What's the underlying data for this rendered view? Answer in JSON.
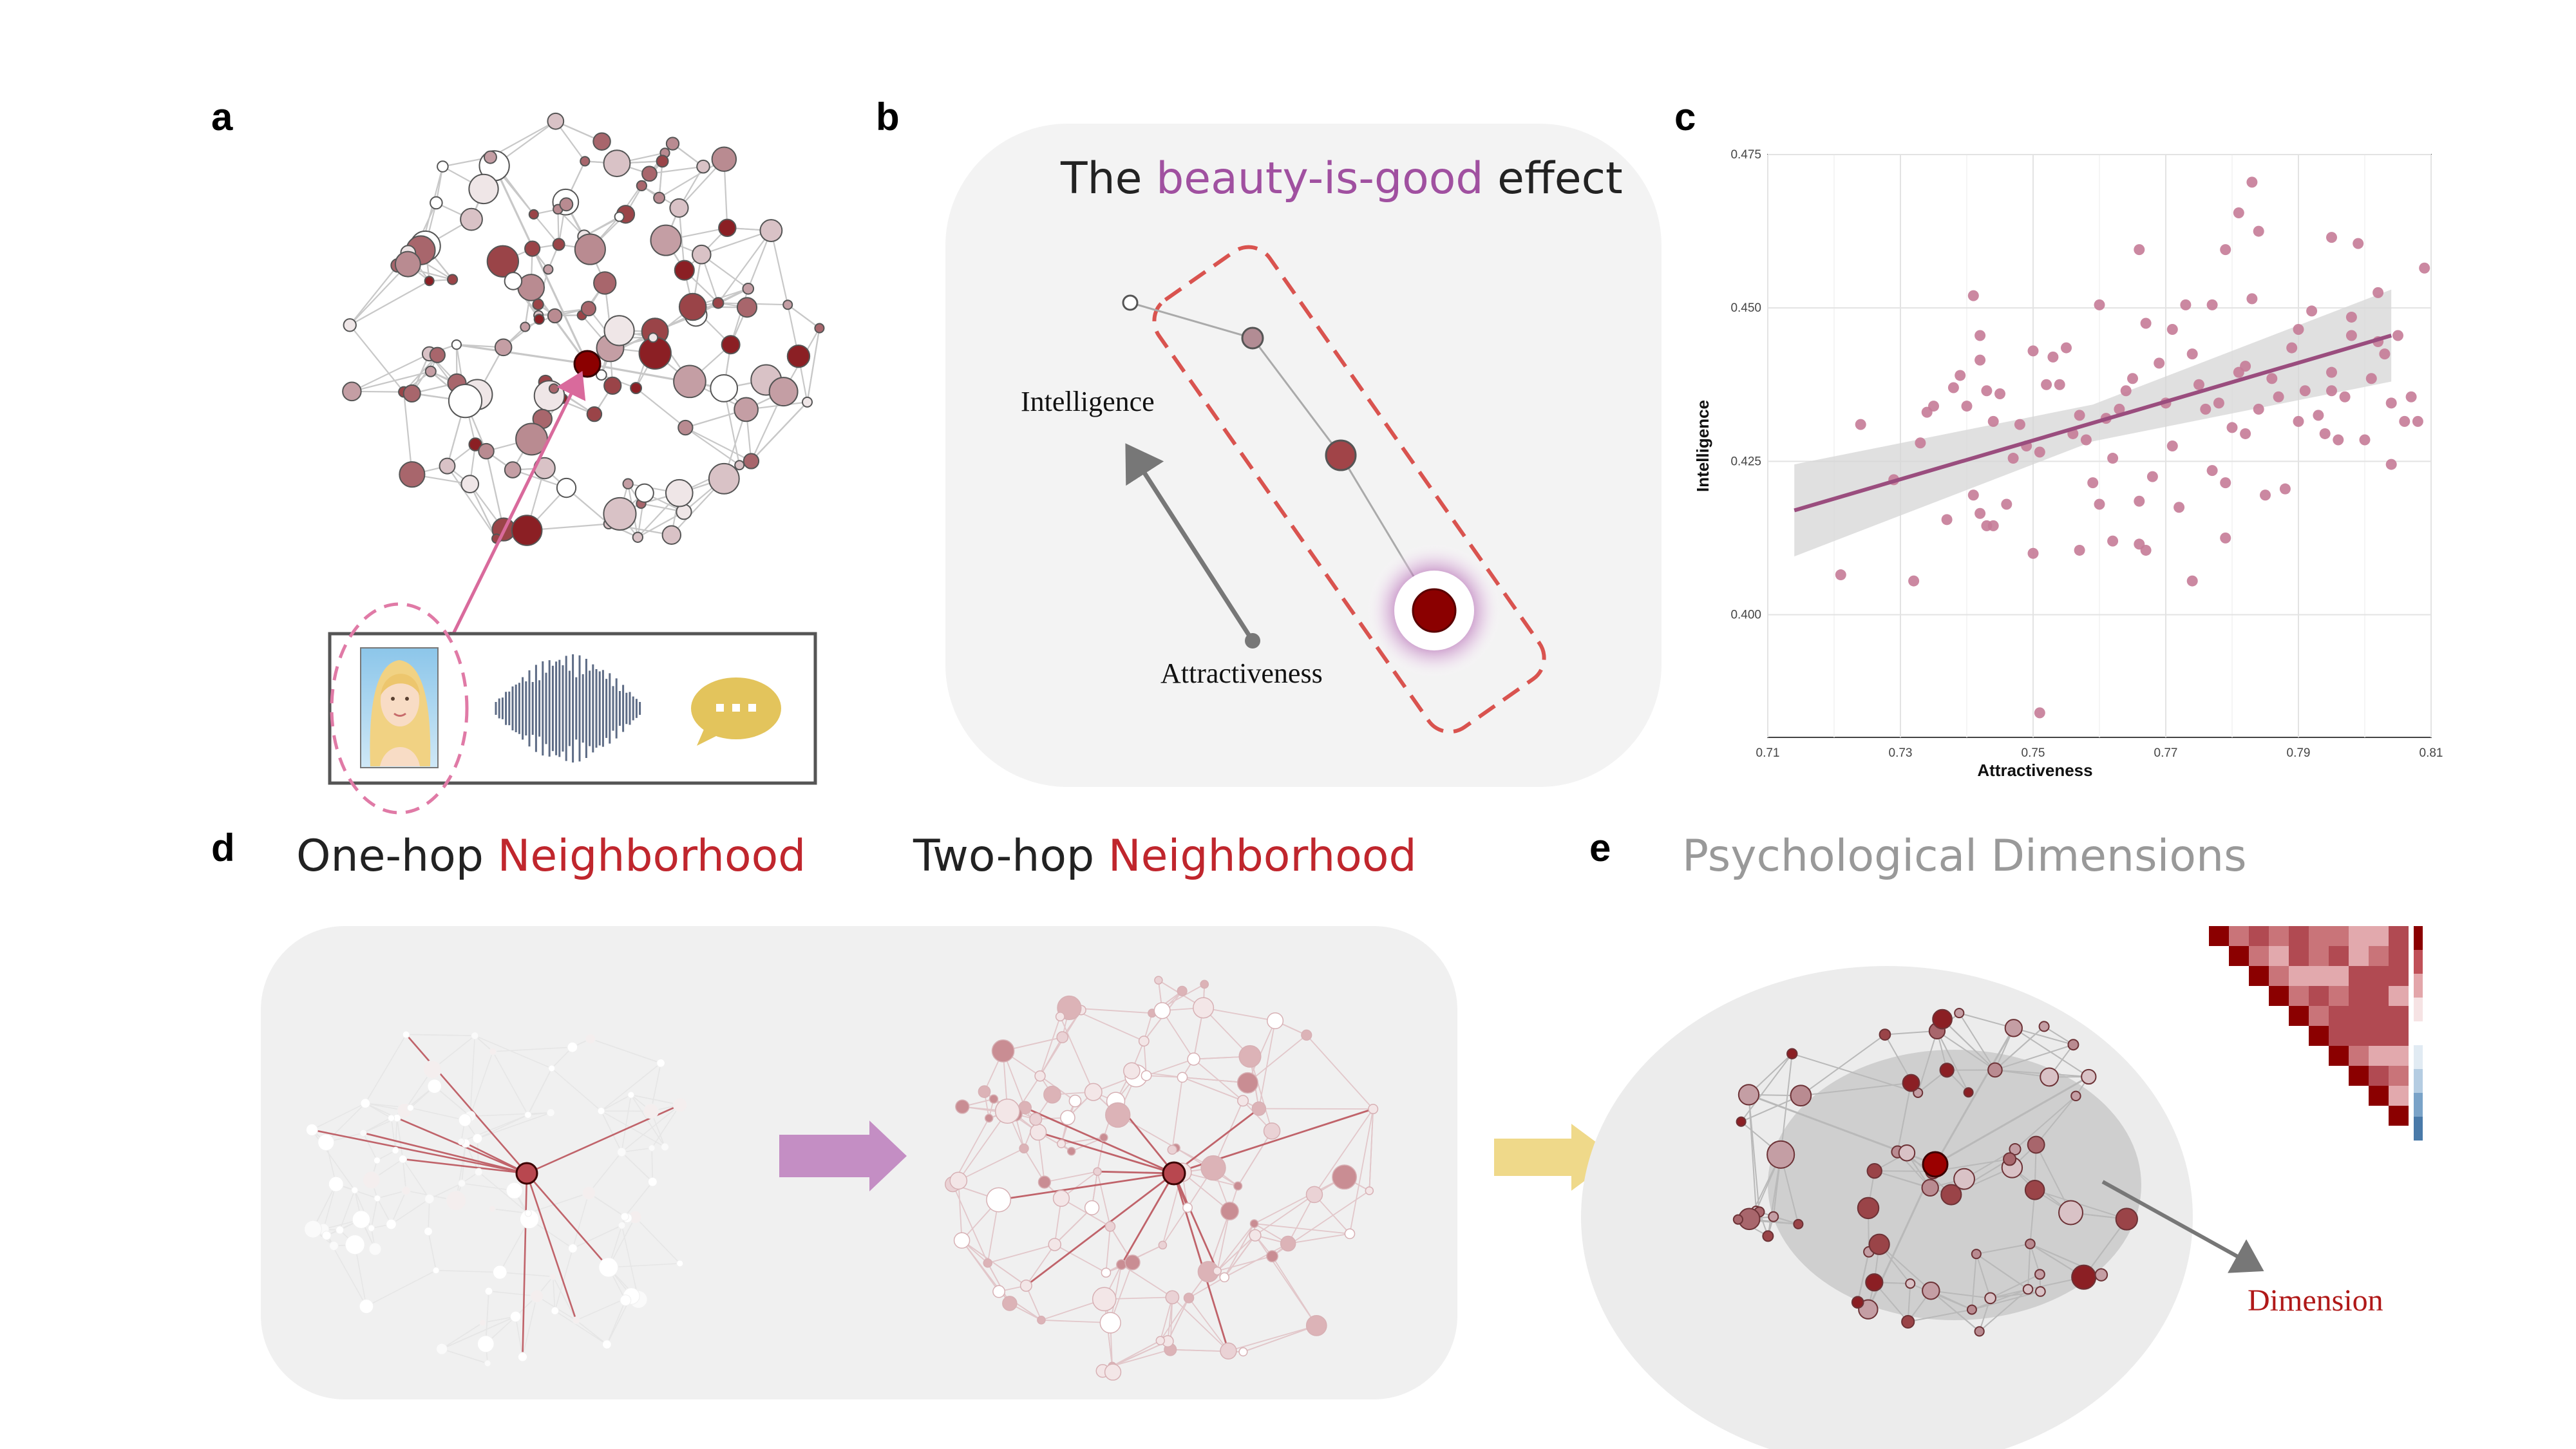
{
  "panels": {
    "a": {
      "label": "a"
    },
    "b": {
      "label": "b",
      "title_prefix": "The ",
      "title_highlight": "beauty-is-good",
      "title_suffix": " effect",
      "y_label": "Intelligence",
      "x_label": "Attractiveness"
    },
    "c": {
      "label": "c"
    },
    "d": {
      "label": "d",
      "onehop_prefix": "One-hop ",
      "twohop_prefix": "Two-hop ",
      "neighborhood": "Neighborhood"
    },
    "e": {
      "label": "e",
      "title": "Psychological Dimensions",
      "dimension_label": "Dimension"
    }
  },
  "colors": {
    "highlight_purple": "#a050a0",
    "neighborhood_red": "#c0262d",
    "dimension_red": "#b01818",
    "node_dark": "#8b0000",
    "fit_line": "#9a4d7e",
    "scatter_point": "#c57b97",
    "arrow_purple": "#c48ec4",
    "arrow_yellow": "#efd98a"
  },
  "chart_data": {
    "type": "scatter",
    "xlabel": "Attractiveness",
    "ylabel": "Intelligence",
    "xlim": [
      0.71,
      0.81
    ],
    "ylim": [
      0.38,
      0.475
    ],
    "xticks": [
      "0.71",
      "0.73",
      "0.75",
      "0.77",
      "0.79",
      "0.81"
    ],
    "yticks": [
      "0.400",
      "0.425",
      "0.450",
      "0.475"
    ],
    "grid": true,
    "fit_line": {
      "x": [
        0.714,
        0.804
      ],
      "y": [
        0.417,
        0.4455
      ]
    },
    "points": [
      [
        0.721,
        0.4065
      ],
      [
        0.724,
        0.431
      ],
      [
        0.729,
        0.422
      ],
      [
        0.732,
        0.4055
      ],
      [
        0.733,
        0.428
      ],
      [
        0.734,
        0.433
      ],
      [
        0.735,
        0.434
      ],
      [
        0.737,
        0.4155
      ],
      [
        0.738,
        0.437
      ],
      [
        0.739,
        0.439
      ],
      [
        0.74,
        0.434
      ],
      [
        0.741,
        0.452
      ],
      [
        0.741,
        0.4195
      ],
      [
        0.742,
        0.4415
      ],
      [
        0.742,
        0.4165
      ],
      [
        0.743,
        0.4145
      ],
      [
        0.743,
        0.4365
      ],
      [
        0.744,
        0.4315
      ],
      [
        0.744,
        0.4145
      ],
      [
        0.745,
        0.436
      ],
      [
        0.746,
        0.418
      ],
      [
        0.747,
        0.4255
      ],
      [
        0.748,
        0.431
      ],
      [
        0.749,
        0.4275
      ],
      [
        0.75,
        0.443
      ],
      [
        0.75,
        0.41
      ],
      [
        0.751,
        0.4265
      ],
      [
        0.751,
        0.384
      ],
      [
        0.752,
        0.4375
      ],
      [
        0.753,
        0.442
      ],
      [
        0.754,
        0.4375
      ],
      [
        0.755,
        0.4435
      ],
      [
        0.756,
        0.4295
      ],
      [
        0.757,
        0.4105
      ],
      [
        0.757,
        0.4325
      ],
      [
        0.758,
        0.4285
      ],
      [
        0.759,
        0.4215
      ],
      [
        0.76,
        0.418
      ],
      [
        0.76,
        0.4505
      ],
      [
        0.761,
        0.432
      ],
      [
        0.762,
        0.4255
      ],
      [
        0.762,
        0.412
      ],
      [
        0.763,
        0.4335
      ],
      [
        0.764,
        0.4365
      ],
      [
        0.765,
        0.4385
      ],
      [
        0.766,
        0.4115
      ],
      [
        0.767,
        0.4475
      ],
      [
        0.767,
        0.4105
      ],
      [
        0.768,
        0.4225
      ],
      [
        0.769,
        0.441
      ],
      [
        0.77,
        0.4345
      ],
      [
        0.771,
        0.4465
      ],
      [
        0.771,
        0.4275
      ],
      [
        0.772,
        0.4175
      ],
      [
        0.773,
        0.4505
      ],
      [
        0.774,
        0.4425
      ],
      [
        0.775,
        0.4375
      ],
      [
        0.776,
        0.4335
      ],
      [
        0.777,
        0.4505
      ],
      [
        0.777,
        0.4235
      ],
      [
        0.778,
        0.4345
      ],
      [
        0.779,
        0.4125
      ],
      [
        0.779,
        0.4215
      ],
      [
        0.78,
        0.4305
      ],
      [
        0.781,
        0.4395
      ],
      [
        0.782,
        0.4405
      ],
      [
        0.782,
        0.4295
      ],
      [
        0.783,
        0.4515
      ],
      [
        0.784,
        0.4335
      ],
      [
        0.784,
        0.4625
      ],
      [
        0.785,
        0.4195
      ],
      [
        0.786,
        0.4385
      ],
      [
        0.787,
        0.4355
      ],
      [
        0.788,
        0.4205
      ],
      [
        0.789,
        0.4435
      ],
      [
        0.79,
        0.4315
      ],
      [
        0.79,
        0.4465
      ],
      [
        0.791,
        0.4365
      ],
      [
        0.792,
        0.4495
      ],
      [
        0.793,
        0.4325
      ],
      [
        0.794,
        0.4295
      ],
      [
        0.795,
        0.4365
      ],
      [
        0.795,
        0.4395
      ],
      [
        0.796,
        0.4285
      ],
      [
        0.797,
        0.4355
      ],
      [
        0.798,
        0.4455
      ],
      [
        0.799,
        0.4605
      ],
      [
        0.8,
        0.4285
      ],
      [
        0.801,
        0.4385
      ],
      [
        0.802,
        0.4525
      ],
      [
        0.803,
        0.4425
      ],
      [
        0.805,
        0.4455
      ],
      [
        0.806,
        0.4315
      ],
      [
        0.807,
        0.4355
      ],
      [
        0.808,
        0.4315
      ],
      [
        0.809,
        0.4565
      ],
      [
        0.766,
        0.4595
      ],
      [
        0.779,
        0.4595
      ],
      [
        0.781,
        0.4655
      ],
      [
        0.783,
        0.4705
      ],
      [
        0.795,
        0.4615
      ],
      [
        0.798,
        0.4485
      ],
      [
        0.774,
        0.4055
      ],
      [
        0.766,
        0.4185
      ],
      [
        0.742,
        0.4455
      ],
      [
        0.802,
        0.4445
      ],
      [
        0.804,
        0.4345
      ],
      [
        0.804,
        0.4245
      ]
    ]
  }
}
